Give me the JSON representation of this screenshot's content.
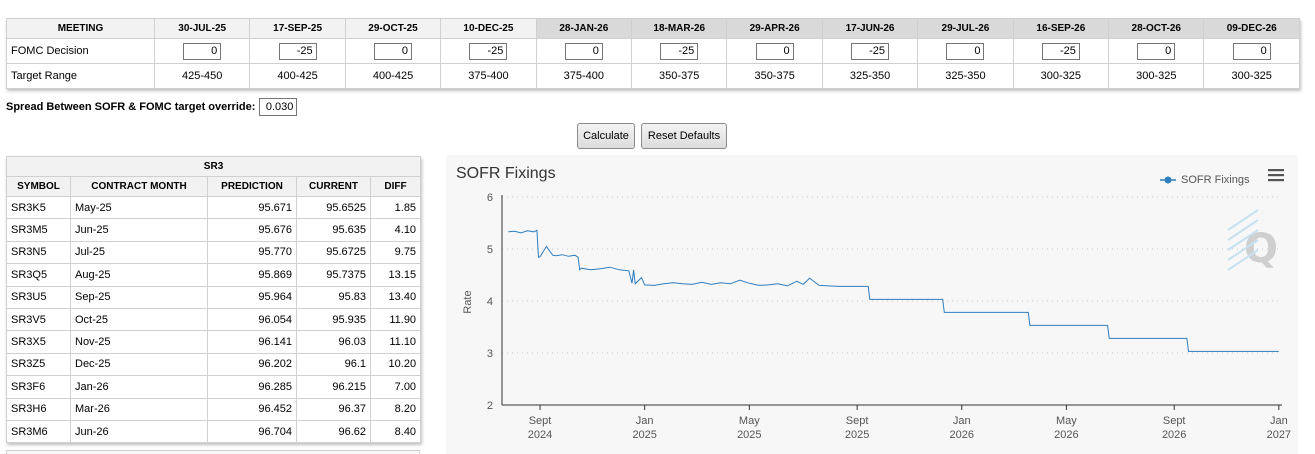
{
  "meetings": {
    "header_label": "MEETING",
    "decision_label": "FOMC Decision",
    "range_label": "Target Range",
    "columns": [
      {
        "date": "30-JUL-25",
        "decision": "0",
        "range": "425-450",
        "future": false
      },
      {
        "date": "17-SEP-25",
        "decision": "-25",
        "range": "400-425",
        "future": false
      },
      {
        "date": "29-OCT-25",
        "decision": "0",
        "range": "400-425",
        "future": false
      },
      {
        "date": "10-DEC-25",
        "decision": "-25",
        "range": "375-400",
        "future": false
      },
      {
        "date": "28-JAN-26",
        "decision": "0",
        "range": "375-400",
        "future": true
      },
      {
        "date": "18-MAR-26",
        "decision": "-25",
        "range": "350-375",
        "future": true
      },
      {
        "date": "29-APR-26",
        "decision": "0",
        "range": "350-375",
        "future": true
      },
      {
        "date": "17-JUN-26",
        "decision": "-25",
        "range": "325-350",
        "future": true
      },
      {
        "date": "29-JUL-26",
        "decision": "0",
        "range": "325-350",
        "future": true
      },
      {
        "date": "16-SEP-26",
        "decision": "-25",
        "range": "300-325",
        "future": true
      },
      {
        "date": "28-OCT-26",
        "decision": "0",
        "range": "300-325",
        "future": true
      },
      {
        "date": "09-DEC-26",
        "decision": "0",
        "range": "300-325",
        "future": true
      }
    ]
  },
  "spread": {
    "label": "Spread Between SOFR & FOMC target override:",
    "value": "0.030"
  },
  "buttons": {
    "calculate": "Calculate",
    "reset": "Reset Defaults"
  },
  "sr3": {
    "title": "SR3",
    "headers": [
      "SYMBOL",
      "CONTRACT MONTH",
      "PREDICTION",
      "CURRENT",
      "DIFF"
    ],
    "rows": [
      [
        "SR3K5",
        "May-25",
        "95.671",
        "95.6525",
        "1.85"
      ],
      [
        "SR3M5",
        "Jun-25",
        "95.676",
        "95.635",
        "4.10"
      ],
      [
        "SR3N5",
        "Jul-25",
        "95.770",
        "95.6725",
        "9.75"
      ],
      [
        "SR3Q5",
        "Aug-25",
        "95.869",
        "95.7375",
        "13.15"
      ],
      [
        "SR3U5",
        "Sep-25",
        "95.964",
        "95.83",
        "13.40"
      ],
      [
        "SR3V5",
        "Oct-25",
        "96.054",
        "95.935",
        "11.90"
      ],
      [
        "SR3X5",
        "Nov-25",
        "96.141",
        "96.03",
        "11.10"
      ],
      [
        "SR3Z5",
        "Dec-25",
        "96.202",
        "96.1",
        "10.20"
      ],
      [
        "SR3F6",
        "Jan-26",
        "96.285",
        "96.215",
        "7.00"
      ],
      [
        "SR3H6",
        "Mar-26",
        "96.452",
        "96.37",
        "8.20"
      ],
      [
        "SR3M6",
        "Jun-26",
        "96.704",
        "96.62",
        "8.40"
      ]
    ]
  },
  "chart": {
    "title": "SOFR Fixings",
    "legend": "SOFR Fixings",
    "ylabel": "Rate",
    "watermark": "Q",
    "menu_icon": "hamburger-menu-icon",
    "line_color": "#2f7ebf"
  },
  "chart_data": {
    "type": "line",
    "title": "SOFR Fixings",
    "xlabel": "",
    "ylabel": "Rate",
    "ylim": [
      2,
      6
    ],
    "yticks": [
      "2",
      "3",
      "4",
      "5",
      "6"
    ],
    "xlim": [
      2024.55,
      2027.01
    ],
    "xticks": [
      {
        "x": 2024.67,
        "line1": "Sept",
        "line2": "2024"
      },
      {
        "x": 2025.0,
        "line1": "Jan",
        "line2": "2025"
      },
      {
        "x": 2025.33,
        "line1": "May",
        "line2": "2025"
      },
      {
        "x": 2025.67,
        "line1": "Sept",
        "line2": "2025"
      },
      {
        "x": 2026.0,
        "line1": "Jan",
        "line2": "2026"
      },
      {
        "x": 2026.33,
        "line1": "May",
        "line2": "2026"
      },
      {
        "x": 2026.67,
        "line1": "Sept",
        "line2": "2026"
      },
      {
        "x": 2027.0,
        "line1": "Jan",
        "line2": "2027"
      }
    ],
    "series": [
      {
        "name": "SOFR Fixings",
        "x": [
          2024.57,
          2024.59,
          2024.61,
          2024.63,
          2024.65,
          2024.66,
          2024.665,
          2024.67,
          2024.69,
          2024.71,
          2024.72,
          2024.74,
          2024.76,
          2024.78,
          2024.79,
          2024.795,
          2024.8,
          2024.83,
          2024.86,
          2024.89,
          2024.92,
          2024.95,
          2024.96,
          2024.965,
          2024.97,
          2024.99,
          2025.0,
          2025.03,
          2025.06,
          2025.09,
          2025.12,
          2025.15,
          2025.18,
          2025.21,
          2025.24,
          2025.27,
          2025.3,
          2025.33,
          2025.36,
          2025.39,
          2025.42,
          2025.45,
          2025.48,
          2025.5,
          2025.52,
          2025.55,
          2025.58,
          2025.61,
          2025.64,
          2025.67,
          2025.705,
          2025.71,
          2025.8,
          2025.94,
          2025.945,
          2026.0,
          2026.21,
          2026.215,
          2026.3,
          2026.46,
          2026.465,
          2026.57,
          2026.71,
          2026.715,
          2026.85,
          2027.0
        ],
        "y": [
          5.33,
          5.34,
          5.31,
          5.35,
          5.33,
          5.36,
          4.84,
          4.85,
          5.05,
          4.88,
          4.87,
          4.89,
          4.86,
          4.88,
          4.84,
          4.6,
          4.63,
          4.6,
          4.62,
          4.65,
          4.6,
          4.58,
          4.34,
          4.6,
          4.33,
          4.45,
          4.31,
          4.3,
          4.33,
          4.35,
          4.33,
          4.32,
          4.36,
          4.32,
          4.35,
          4.33,
          4.4,
          4.34,
          4.3,
          4.31,
          4.33,
          4.29,
          4.38,
          4.32,
          4.44,
          4.3,
          4.29,
          4.28,
          4.28,
          4.28,
          4.28,
          4.03,
          4.03,
          4.03,
          3.78,
          3.78,
          3.78,
          3.53,
          3.53,
          3.53,
          3.28,
          3.28,
          3.28,
          3.03,
          3.03,
          3.03
        ]
      }
    ]
  }
}
